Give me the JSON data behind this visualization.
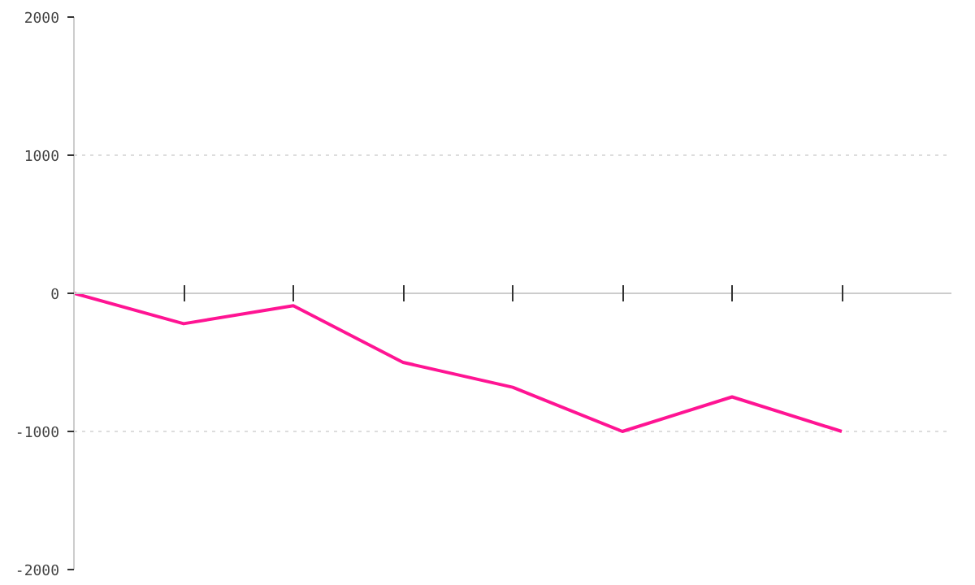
{
  "chart_data": {
    "type": "line",
    "categories": [
      null,
      null,
      null,
      null,
      null,
      null,
      null,
      null
    ],
    "series": [
      {
        "color": "#ff1493",
        "values": [
          0,
          -220,
          -90,
          -500,
          -680,
          -1000,
          -750,
          -1000
        ]
      }
    ],
    "ylim": [
      -2000,
      2000
    ],
    "yticks": [
      -2000,
      -1000,
      0,
      1000,
      2000
    ],
    "tick_labels": "y",
    "grid": "y",
    "marker": "none",
    "line_style": "solid"
  }
}
